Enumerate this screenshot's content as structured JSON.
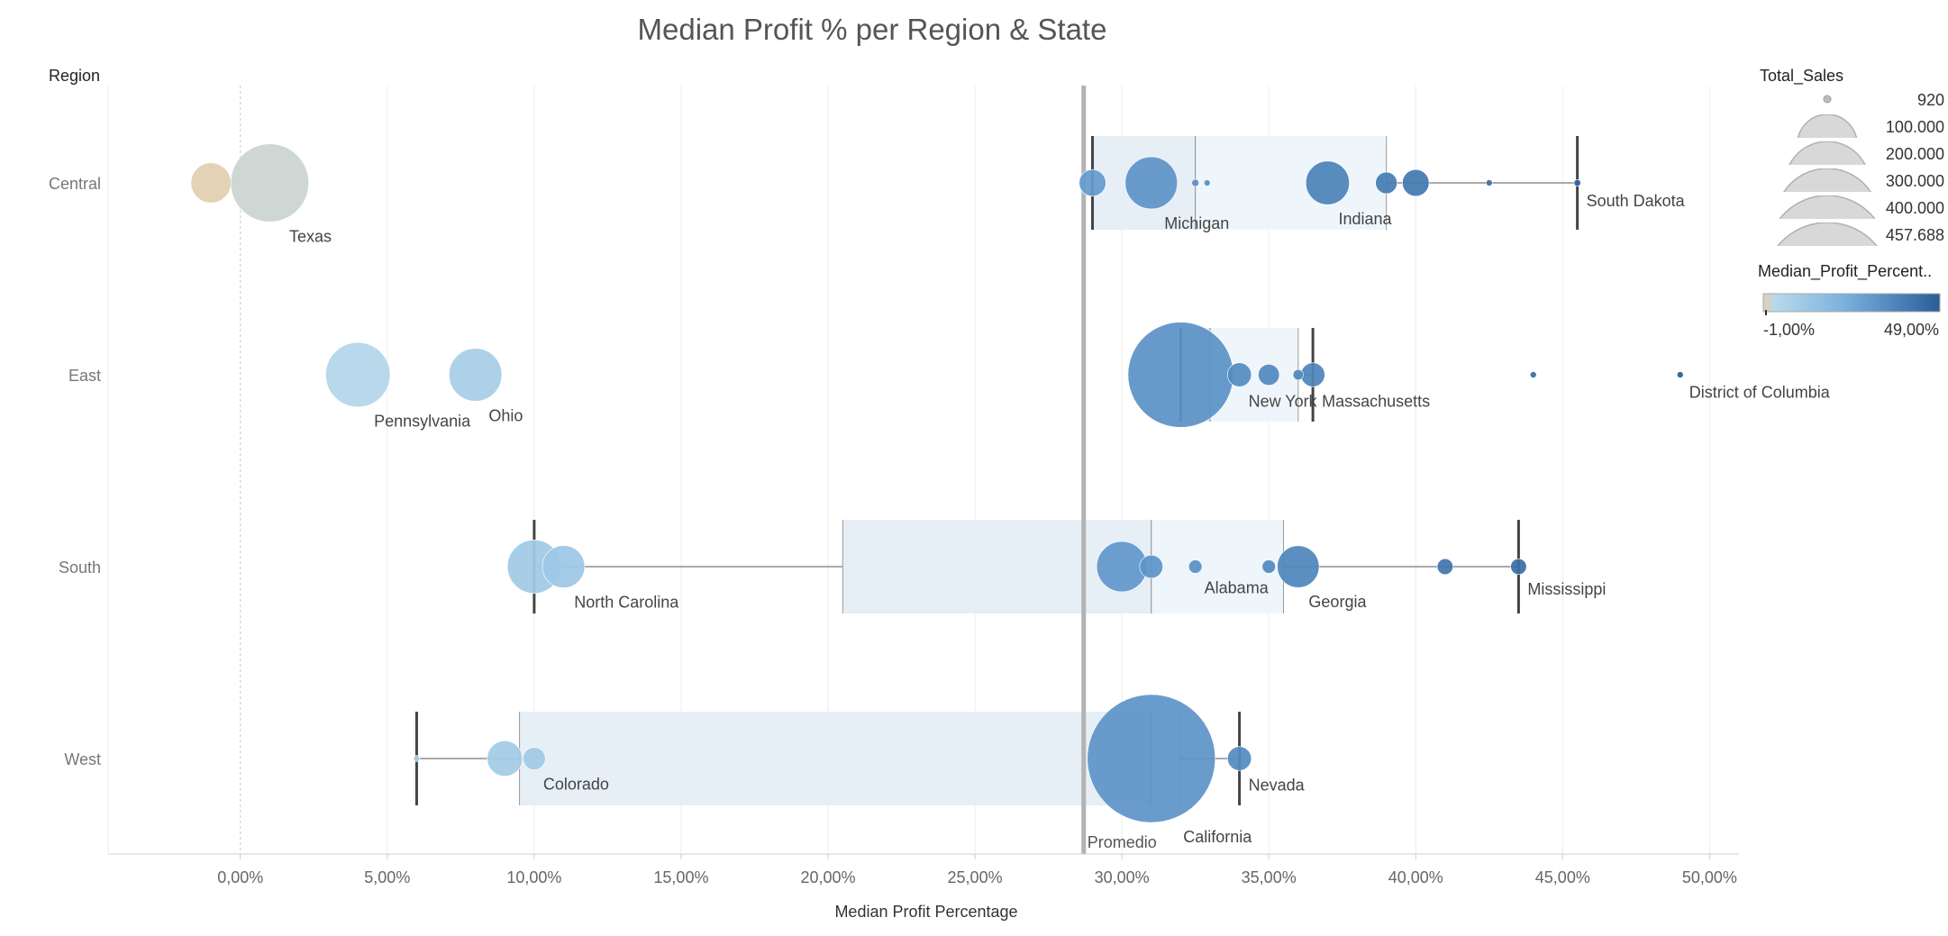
{
  "chart_data": {
    "type": "scatter",
    "title": "Median Profit % per Region & State",
    "xlabel": "Median Profit Percentage",
    "ylabel": "Region",
    "xlim": [
      -0.045,
      0.51
    ],
    "ticks": [
      "0,00%",
      "5,00%",
      "10,00%",
      "15,00%",
      "20,00%",
      "25,00%",
      "30,00%",
      "35,00%",
      "40,00%",
      "45,00%",
      "50,00%"
    ],
    "tick_values": [
      0,
      0.05,
      0.1,
      0.15,
      0.2,
      0.25,
      0.3,
      0.35,
      0.4,
      0.45,
      0.5
    ],
    "regions": [
      "Central",
      "East",
      "South",
      "West"
    ],
    "reference_line": {
      "label": "Promedio",
      "value": 0.287
    },
    "color_scale": {
      "min": -0.01,
      "max": 0.49,
      "min_label": "-1,00%",
      "max_label": "49,00%"
    },
    "size_legend": {
      "title": "Total_Sales",
      "values": [
        920,
        100000,
        200000,
        300000,
        400000,
        457688
      ],
      "labels": [
        "920",
        "100.000",
        "200.000",
        "300.000",
        "400.000",
        "457.688"
      ]
    },
    "color_legend_title": "Median_Profit_Percent..",
    "boxplots": [
      {
        "region": "Central",
        "whisker_low": 0.29,
        "q1": 0.29,
        "median": 0.325,
        "q3": 0.39,
        "whisker_high": 0.455
      },
      {
        "region": "East",
        "whisker_low": 0.32,
        "q1": 0.32,
        "median": 0.33,
        "q3": 0.36,
        "whisker_high": 0.365
      },
      {
        "region": "South",
        "whisker_low": 0.1,
        "q1": 0.205,
        "median": 0.31,
        "q3": 0.355,
        "whisker_high": 0.435
      },
      {
        "region": "West",
        "whisker_low": 0.06,
        "q1": 0.095,
        "median": 0.31,
        "q3": 0.32,
        "whisker_high": 0.34
      }
    ],
    "points": [
      {
        "region": "Central",
        "label": "Texas",
        "x": 0.01,
        "sales": 170000
      },
      {
        "region": "Central",
        "label": "",
        "x": -0.01,
        "sales": 45000
      },
      {
        "region": "Central",
        "label": "",
        "x": 0.29,
        "sales": 20000
      },
      {
        "region": "Central",
        "label": "Michigan",
        "x": 0.31,
        "sales": 76000
      },
      {
        "region": "Central",
        "label": "",
        "x": 0.325,
        "sales": 1500
      },
      {
        "region": "Central",
        "label": "",
        "x": 0.329,
        "sales": 600
      },
      {
        "region": "Central",
        "label": "Indiana",
        "x": 0.37,
        "sales": 53000
      },
      {
        "region": "Central",
        "label": "",
        "x": 0.39,
        "sales": 13000
      },
      {
        "region": "Central",
        "label": "",
        "x": 0.4,
        "sales": 20000
      },
      {
        "region": "Central",
        "label": "",
        "x": 0.425,
        "sales": 500
      },
      {
        "region": "Central",
        "label": "South Dakota",
        "x": 0.455,
        "sales": 1300
      },
      {
        "region": "East",
        "label": "Pennsylvania",
        "x": 0.04,
        "sales": 116000
      },
      {
        "region": "East",
        "label": "Ohio",
        "x": 0.08,
        "sales": 78000
      },
      {
        "region": "East",
        "label": "",
        "x": 0.32,
        "sales": 310000
      },
      {
        "region": "East",
        "label": "New York",
        "x": 0.34,
        "sales": 16000
      },
      {
        "region": "East",
        "label": "",
        "x": 0.35,
        "sales": 12500
      },
      {
        "region": "East",
        "label": "",
        "x": 0.36,
        "sales": 3000
      },
      {
        "region": "East",
        "label": "Massachusetts",
        "x": 0.365,
        "sales": 16000
      },
      {
        "region": "East",
        "label": "",
        "x": 0.44,
        "sales": 900
      },
      {
        "region": "East",
        "label": "District of Columbia",
        "x": 0.49,
        "sales": 300
      },
      {
        "region": "South",
        "label": "",
        "x": 0.1,
        "sales": 80000
      },
      {
        "region": "South",
        "label": "North Carolina",
        "x": 0.11,
        "sales": 50000
      },
      {
        "region": "South",
        "label": "",
        "x": 0.3,
        "sales": 71000
      },
      {
        "region": "South",
        "label": "",
        "x": 0.31,
        "sales": 15000
      },
      {
        "region": "South",
        "label": "Alabama",
        "x": 0.325,
        "sales": 5000
      },
      {
        "region": "South",
        "label": "",
        "x": 0.35,
        "sales": 5000
      },
      {
        "region": "South",
        "label": "Georgia",
        "x": 0.36,
        "sales": 49000
      },
      {
        "region": "South",
        "label": "",
        "x": 0.41,
        "sales": 7000
      },
      {
        "region": "South",
        "label": "Mississippi",
        "x": 0.435,
        "sales": 7000
      },
      {
        "region": "West",
        "label": "",
        "x": 0.06,
        "sales": 400
      },
      {
        "region": "West",
        "label": "",
        "x": 0.09,
        "sales": 35000
      },
      {
        "region": "West",
        "label": "Colorado",
        "x": 0.1,
        "sales": 14000
      },
      {
        "region": "West",
        "label": "California",
        "x": 0.31,
        "sales": 457688
      },
      {
        "region": "West",
        "label": "Nevada",
        "x": 0.34,
        "sales": 16000
      }
    ],
    "grid": true,
    "legend": "right"
  }
}
